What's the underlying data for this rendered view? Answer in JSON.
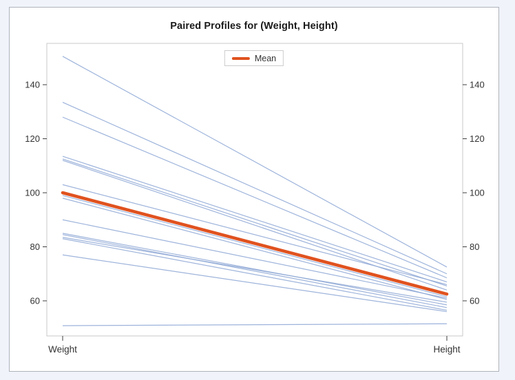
{
  "title": "Paired Profiles for (Weight, Height)",
  "legend": {
    "label": "Mean"
  },
  "colors": {
    "page_background": "#f0f3fa",
    "panel_border": "#aeb2ba",
    "plot_frame": "#c9c9c9",
    "tick_mark": "#3c3c3c",
    "tick_text": "#333333",
    "axis_text": "#333333",
    "title_text": "#1a1a1a",
    "legend_border": "#cccccc",
    "profile_line": "#8fa9d6",
    "mean_line": "#e0521f"
  },
  "chart_data": {
    "type": "line",
    "title": "Paired Profiles for (Weight, Height)",
    "x_categories": [
      "Weight",
      "Height"
    ],
    "y_ticks": [
      60,
      80,
      100,
      120,
      140
    ],
    "ylim": [
      47,
      155.3
    ],
    "grid": false,
    "legend_position": "top-center",
    "legend_entries": [
      "Mean"
    ],
    "profiles": [
      [
        150.5,
        72.5
      ],
      [
        133.5,
        70.0
      ],
      [
        128.0,
        68.5
      ],
      [
        113.5,
        67.0
      ],
      [
        112.5,
        65.5
      ],
      [
        112.0,
        64.0
      ],
      [
        103.0,
        66.0
      ],
      [
        99.0,
        61.5
      ],
      [
        98.0,
        60.5
      ],
      [
        90.0,
        61.0
      ],
      [
        85.0,
        58.5
      ],
      [
        84.5,
        57.5
      ],
      [
        83.5,
        59.5
      ],
      [
        83.0,
        56.5
      ],
      [
        77.0,
        56.0
      ],
      [
        50.8,
        51.5
      ]
    ],
    "mean": [
      100,
      62.5
    ]
  }
}
